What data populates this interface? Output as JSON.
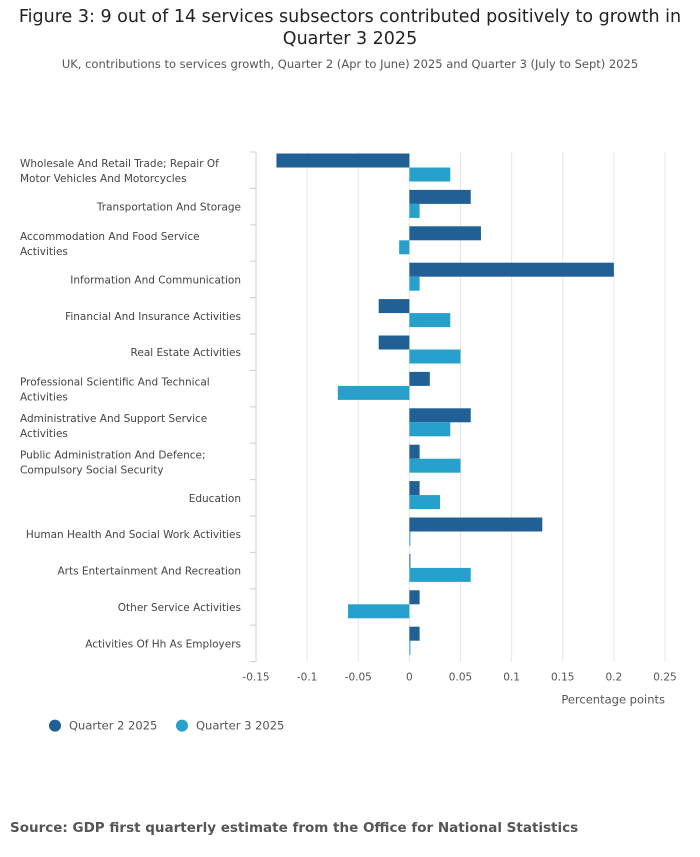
{
  "chart_data": {
    "type": "bar",
    "orientation": "horizontal",
    "title": "Figure 3: 9 out of 14 services subsectors contributed positively to growth in Quarter 3 2025",
    "subtitle": "UK, contributions to services growth, Quarter 2 (Apr to June) 2025 and Quarter 3 (July to Sept) 2025",
    "xlabel": "Percentage points",
    "xlim": [
      -0.15,
      0.25
    ],
    "xticks": [
      -0.15,
      -0.1,
      -0.05,
      0,
      0.05,
      0.1,
      0.15,
      0.2,
      0.25
    ],
    "xtick_labels": [
      "-0.15",
      "-0.1",
      "-0.05",
      "0",
      "0.05",
      "0.1",
      "0.15",
      "0.2",
      "0.25"
    ],
    "grid": true,
    "legend_position": "bottom-left",
    "categories": [
      [
        "Wholesale And Retail Trade; Repair Of",
        "Motor Vehicles And Motorcycles"
      ],
      [
        "Transportation And Storage"
      ],
      [
        "Accommodation And Food Service",
        "Activities"
      ],
      [
        "Information And Communication"
      ],
      [
        "Financial And Insurance Activities"
      ],
      [
        "Real Estate Activities"
      ],
      [
        "Professional Scientific And Technical",
        "Activities"
      ],
      [
        "Administrative And Support Service",
        "Activities"
      ],
      [
        "Public Administration And Defence;",
        "Compulsory Social Security"
      ],
      [
        "Education"
      ],
      [
        "Human Health And Social Work Activities"
      ],
      [
        "Arts Entertainment And Recreation"
      ],
      [
        "Other Service Activities"
      ],
      [
        "Activities Of Hh As Employers"
      ]
    ],
    "series": [
      {
        "name": "Quarter 2 2025",
        "color": "#206095",
        "values": [
          -0.13,
          0.06,
          0.07,
          0.2,
          -0.03,
          -0.03,
          0.02,
          0.06,
          0.01,
          0.01,
          0.13,
          0.0,
          0.01,
          0.01
        ]
      },
      {
        "name": "Quarter 3 2025",
        "color": "#27a0cc",
        "values": [
          0.04,
          0.01,
          -0.01,
          0.01,
          0.04,
          0.05,
          -0.07,
          0.04,
          0.05,
          0.03,
          0.0,
          0.06,
          -0.06,
          0.0
        ]
      }
    ]
  },
  "footer": {
    "source": "Source: GDP first quarterly estimate from the Office for National Statistics"
  }
}
